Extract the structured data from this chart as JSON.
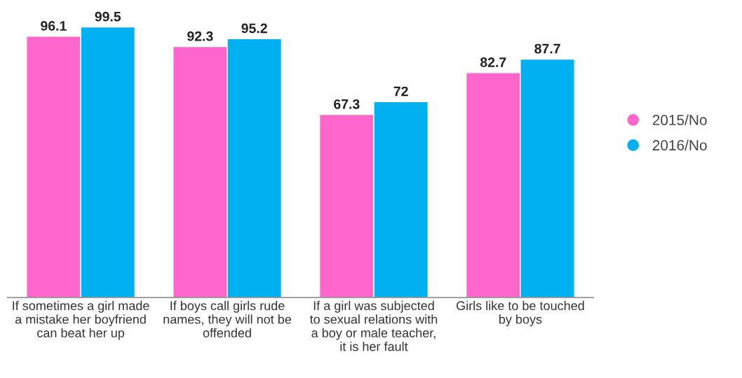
{
  "chart_data": {
    "type": "bar",
    "categories": [
      "If sometimes a girl made\na mistake her boyfriend\ncan beat her up",
      "If boys call girls rude\nnames, they will not be\noffended",
      "If a girl was subjected\nto sexual relations with\na boy or male teacher,\nit is her fault",
      "Girls like to be touched\nby boys"
    ],
    "series": [
      {
        "name": "2015/No",
        "color": "#ff66cc",
        "values": [
          96.1,
          92.3,
          67.3,
          82.7
        ]
      },
      {
        "name": "2016/No",
        "color": "#00b0f0",
        "values": [
          99.5,
          95.2,
          72,
          87.7
        ]
      }
    ],
    "data_labels": true,
    "legend": "right",
    "tick_labels": "x",
    "grid": false
  }
}
